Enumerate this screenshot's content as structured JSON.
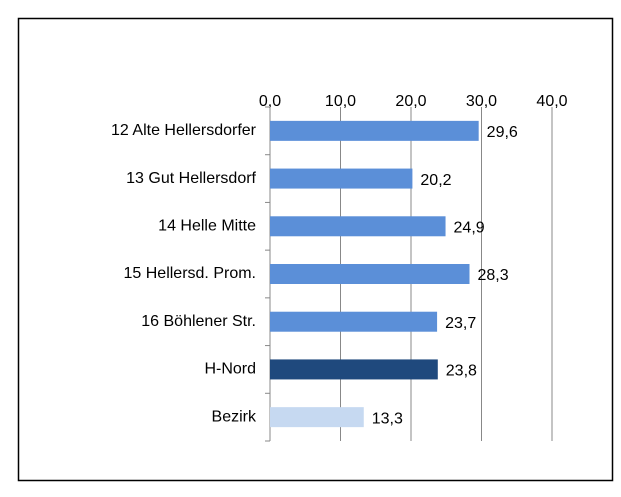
{
  "chart_data": {
    "type": "hbar",
    "categories": [
      "12 Alte Hellersdorfer",
      "13 Gut Hellersdorf",
      "14 Helle Mitte",
      "15 Hellersd. Prom.",
      "16 Böhlener Str.",
      "H-Nord",
      "Bezirk"
    ],
    "values": [
      29.6,
      20.2,
      24.9,
      28.3,
      23.7,
      23.8,
      13.3
    ],
    "value_labels": [
      "29,6",
      "20,2",
      "24,9",
      "28,3",
      "23,7",
      "23,8",
      "13,3"
    ],
    "colors": [
      "#5b8fd8",
      "#5b8fd8",
      "#5b8fd8",
      "#5b8fd8",
      "#5b8fd8",
      "#1f497d",
      "#c6d9f1"
    ],
    "xlim": [
      0,
      40
    ],
    "xticks": [
      {
        "value": 0,
        "label": "0,0"
      },
      {
        "value": 10,
        "label": "10,0"
      },
      {
        "value": 20,
        "label": "20,0"
      },
      {
        "value": 30,
        "label": "30,0"
      },
      {
        "value": 40,
        "label": "40,0"
      }
    ],
    "grid": true
  }
}
